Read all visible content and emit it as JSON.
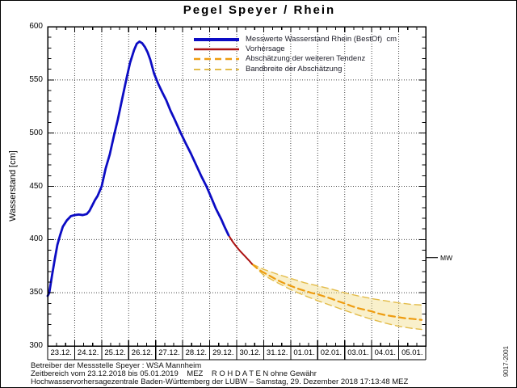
{
  "title": "Pegel Speyer / Rhein",
  "side_code": "9017-2001",
  "footer": {
    "line1": "Betreiber der Messstelle Speyer : WSA Mannheim",
    "line2": "Zeitbereich vom 23.12.2018 bis 05.01.2019    MEZ    R O H D A T E N ohne Gewähr",
    "line3": "Hochwasservorhersagezentrale Baden-Württemberg der LUBW – Samstag, 29. Dezember 2018 17:13:48 MEZ"
  },
  "chart_data": {
    "type": "line",
    "title": "Pegel Speyer / Rhein",
    "ylabel": "Wasserstand [cm]",
    "ylim": [
      300,
      600
    ],
    "yticks": [
      600,
      550,
      500,
      450,
      400,
      350,
      300
    ],
    "xlim": [
      0,
      14
    ],
    "x_unit": "days since 23.12.2018 00:00 MEZ",
    "xlabels": [
      "23.12.",
      "24.12.",
      "25.12.",
      "26.12.",
      "27.12.",
      "28.12.",
      "29.12.",
      "30.12.",
      "31.12.",
      "01.01.",
      "02.01.",
      "03.01.",
      "04.01.",
      "05.01."
    ],
    "grid": "dotted; vertical each day, horizontal each 50 cm",
    "legend_position": "top-right inside",
    "marker": {
      "label": "MW",
      "value": 383
    },
    "colors": {
      "measured": "#0c0cc4",
      "forecast": "#ac1212",
      "tendency": "#ee9c10",
      "band": "#e3bc4a",
      "band_fill": "rgba(242,222,140,0.45)",
      "grid": "#444444",
      "axis": "#000000"
    },
    "series": [
      {
        "name": "Messwerte Wasserstand Rhein (BestOf)  cm",
        "style": "solid",
        "color_key": "measured",
        "width": 2.8,
        "swatch_width": 4,
        "points": [
          [
            0,
            347
          ],
          [
            0.06,
            350
          ],
          [
            0.16,
            366
          ],
          [
            0.26,
            381
          ],
          [
            0.36,
            395
          ],
          [
            0.46,
            404
          ],
          [
            0.56,
            412
          ],
          [
            0.71,
            418
          ],
          [
            0.86,
            422
          ],
          [
            1.0,
            423
          ],
          [
            1.15,
            423.5
          ],
          [
            1.3,
            423
          ],
          [
            1.45,
            424
          ],
          [
            1.55,
            427
          ],
          [
            1.65,
            432
          ],
          [
            1.75,
            437
          ],
          [
            1.85,
            441
          ],
          [
            2.0,
            450
          ],
          [
            2.15,
            467
          ],
          [
            2.3,
            480
          ],
          [
            2.45,
            497
          ],
          [
            2.6,
            513
          ],
          [
            2.75,
            531
          ],
          [
            2.9,
            549
          ],
          [
            3.05,
            566
          ],
          [
            3.2,
            578
          ],
          [
            3.3,
            584
          ],
          [
            3.4,
            586
          ],
          [
            3.5,
            584.5
          ],
          [
            3.6,
            581
          ],
          [
            3.7,
            576
          ],
          [
            3.8,
            569
          ],
          [
            3.94,
            556
          ],
          [
            4.1,
            546
          ],
          [
            4.25,
            538
          ],
          [
            4.39,
            531
          ],
          [
            4.55,
            521
          ],
          [
            4.7,
            513
          ],
          [
            4.93,
            500
          ],
          [
            5.1,
            491
          ],
          [
            5.3,
            481
          ],
          [
            5.5,
            470
          ],
          [
            5.7,
            459
          ],
          [
            5.88,
            450
          ],
          [
            6.05,
            440
          ],
          [
            6.23,
            429
          ],
          [
            6.43,
            419
          ],
          [
            6.55,
            412
          ],
          [
            6.7,
            404
          ]
        ]
      },
      {
        "name": "Vorhersage",
        "style": "solid",
        "color_key": "forecast",
        "width": 2.0,
        "swatch_width": 2.5,
        "points": [
          [
            6.7,
            404
          ],
          [
            6.85,
            398
          ],
          [
            7.0,
            393
          ],
          [
            7.15,
            388.5
          ],
          [
            7.3,
            384.5
          ],
          [
            7.45,
            380.5
          ],
          [
            7.57,
            377
          ]
        ]
      },
      {
        "name": "Abschätzung der weiteren Tendenz",
        "style": "dashed",
        "color_key": "tendency",
        "width": 2.2,
        "swatch_width": 2.5,
        "points": [
          [
            7.57,
            377
          ],
          [
            7.8,
            372
          ],
          [
            8.0,
            369
          ],
          [
            8.25,
            365.5
          ],
          [
            8.5,
            362
          ],
          [
            8.75,
            359
          ],
          [
            9.0,
            356.5
          ],
          [
            9.25,
            354
          ],
          [
            9.5,
            352
          ],
          [
            9.75,
            350
          ],
          [
            10.0,
            348.5
          ],
          [
            10.25,
            346.5
          ],
          [
            10.5,
            344.5
          ],
          [
            10.75,
            342
          ],
          [
            11.0,
            340
          ],
          [
            11.25,
            337.5
          ],
          [
            11.5,
            335.5
          ],
          [
            11.75,
            334
          ],
          [
            12.0,
            332.5
          ],
          [
            12.25,
            330.5
          ],
          [
            12.5,
            329
          ],
          [
            12.75,
            328
          ],
          [
            13.0,
            327
          ],
          [
            13.25,
            326
          ],
          [
            13.5,
            325.5
          ],
          [
            13.85,
            324.5
          ]
        ]
      },
      {
        "name": "Bandbreite der Abschätzung",
        "style": "dashed",
        "color_key": "band",
        "width": 1.4,
        "swatch_width": 2,
        "upper": [
          [
            7.57,
            377
          ],
          [
            8.0,
            372
          ],
          [
            8.5,
            367.5
          ],
          [
            9.0,
            363.5
          ],
          [
            9.5,
            359.5
          ],
          [
            10.0,
            356.5
          ],
          [
            10.5,
            353.5
          ],
          [
            11.0,
            350
          ],
          [
            11.5,
            347
          ],
          [
            12.0,
            344.5
          ],
          [
            12.5,
            342.5
          ],
          [
            13.0,
            340.5
          ],
          [
            13.5,
            339
          ],
          [
            13.85,
            338.5
          ]
        ],
        "lower": [
          [
            7.57,
            377
          ],
          [
            8.0,
            366.5
          ],
          [
            8.5,
            359.5
          ],
          [
            9.0,
            353
          ],
          [
            9.5,
            347.5
          ],
          [
            10.0,
            342.5
          ],
          [
            10.5,
            338
          ],
          [
            11.0,
            333.5
          ],
          [
            11.5,
            329
          ],
          [
            12.0,
            325
          ],
          [
            12.5,
            321.5
          ],
          [
            13.0,
            318.5
          ],
          [
            13.5,
            316.5
          ],
          [
            13.85,
            315.5
          ]
        ]
      }
    ]
  }
}
